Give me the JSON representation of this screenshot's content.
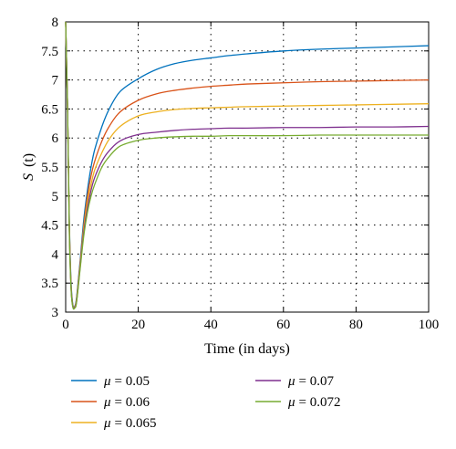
{
  "chart_data": {
    "type": "line",
    "xlabel": "Time (in days)",
    "ylabel_var": "S",
    "ylabel_arg": "(t)",
    "xlim": [
      0,
      100
    ],
    "ylim": [
      3,
      8
    ],
    "xticks": [
      0,
      20,
      40,
      60,
      80,
      100
    ],
    "yticks": [
      3,
      3.5,
      4,
      4.5,
      5,
      5.5,
      6,
      6.5,
      7,
      7.5,
      8
    ],
    "xtick_labels": [
      "0",
      "20",
      "40",
      "60",
      "80",
      "100"
    ],
    "ytick_labels": [
      "3",
      "3.5",
      "4",
      "4.5",
      "5",
      "5.5",
      "6",
      "6.5",
      "7",
      "7.5",
      "8"
    ],
    "grid": true,
    "legend_position": "below",
    "x": [
      0,
      0.5,
      1,
      1.5,
      2,
      2.5,
      3,
      4,
      5,
      6,
      7,
      8,
      10,
      12,
      15,
      20,
      25,
      30,
      35,
      40,
      45,
      50,
      60,
      70,
      80,
      90,
      100
    ],
    "series": [
      {
        "label_symbol": "μ",
        "label_value": "= 0.05",
        "color": "#0072BD",
        "values": [
          8.0,
          6.6,
          4.6,
          3.5,
          3.12,
          3.1,
          3.25,
          3.9,
          4.6,
          5.1,
          5.5,
          5.8,
          6.2,
          6.5,
          6.8,
          7.02,
          7.18,
          7.28,
          7.34,
          7.38,
          7.42,
          7.45,
          7.5,
          7.53,
          7.55,
          7.57,
          7.59
        ]
      },
      {
        "label_symbol": "μ",
        "label_value": "= 0.06",
        "color": "#D95319",
        "values": [
          8.0,
          6.6,
          4.55,
          3.45,
          3.1,
          3.09,
          3.22,
          3.85,
          4.5,
          5.0,
          5.35,
          5.6,
          5.95,
          6.2,
          6.45,
          6.65,
          6.76,
          6.82,
          6.86,
          6.89,
          6.91,
          6.93,
          6.95,
          6.97,
          6.98,
          6.99,
          7.0
        ]
      },
      {
        "label_symbol": "μ",
        "label_value": "= 0.065",
        "color": "#EDB120",
        "values": [
          8.0,
          6.6,
          4.5,
          3.42,
          3.1,
          3.08,
          3.2,
          3.82,
          4.45,
          4.9,
          5.2,
          5.45,
          5.75,
          5.98,
          6.2,
          6.38,
          6.45,
          6.49,
          6.51,
          6.52,
          6.53,
          6.54,
          6.55,
          6.56,
          6.57,
          6.58,
          6.59
        ]
      },
      {
        "label_symbol": "μ",
        "label_value": "= 0.07",
        "color": "#7E2F8E",
        "values": [
          8.0,
          6.6,
          4.45,
          3.4,
          3.09,
          3.08,
          3.18,
          3.78,
          4.38,
          4.8,
          5.1,
          5.32,
          5.6,
          5.78,
          5.95,
          6.06,
          6.1,
          6.13,
          6.15,
          6.16,
          6.17,
          6.17,
          6.18,
          6.18,
          6.19,
          6.19,
          6.2
        ]
      },
      {
        "label_symbol": "μ",
        "label_value": "= 0.072",
        "color": "#77AC30",
        "values": [
          8.0,
          6.6,
          4.4,
          3.38,
          3.08,
          3.07,
          3.17,
          3.75,
          4.32,
          4.72,
          5.0,
          5.2,
          5.5,
          5.68,
          5.86,
          5.96,
          6.0,
          6.02,
          6.03,
          6.03,
          6.04,
          6.04,
          6.04,
          6.05,
          6.05,
          6.05,
          6.05
        ]
      }
    ]
  }
}
